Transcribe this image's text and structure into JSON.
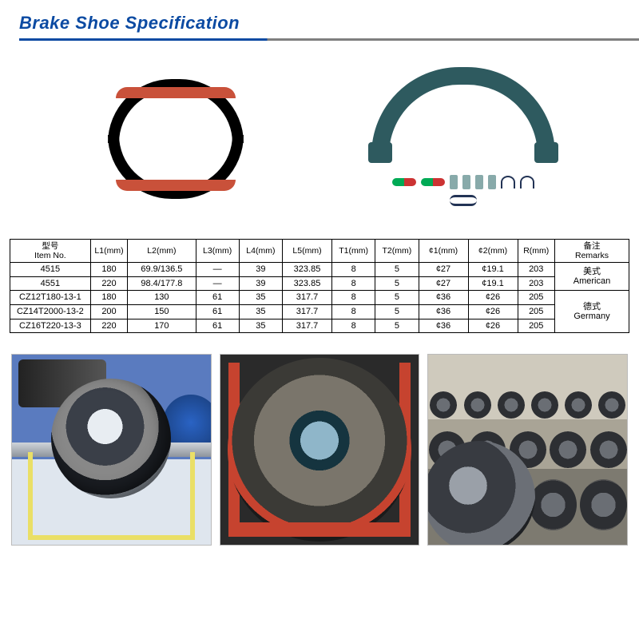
{
  "title": "Brake Shoe Specification",
  "colors": {
    "title": "#0b4aa2",
    "underline_primary": "#0b4aa2",
    "underline_secondary": "#7f7f7f",
    "shoe_lining": "#c9513a",
    "shoe_body": "#000000",
    "kit_body": "#2e5a5f",
    "table_border": "#000000"
  },
  "table": {
    "headers": [
      {
        "cn": "型号",
        "en": "Item No."
      },
      {
        "cn": "",
        "en": "L1(mm)"
      },
      {
        "cn": "",
        "en": "L2(mm)"
      },
      {
        "cn": "",
        "en": "L3(mm)"
      },
      {
        "cn": "",
        "en": "L4(mm)"
      },
      {
        "cn": "",
        "en": "L5(mm)"
      },
      {
        "cn": "",
        "en": "T1(mm)"
      },
      {
        "cn": "",
        "en": "T2(mm)"
      },
      {
        "cn": "",
        "en": "¢1(mm)"
      },
      {
        "cn": "",
        "en": "¢2(mm)"
      },
      {
        "cn": "",
        "en": "R(mm)"
      },
      {
        "cn": "备注",
        "en": "Remarks"
      }
    ],
    "col_widths_pct": [
      13,
      6,
      11,
      7,
      7,
      8,
      7,
      7,
      8,
      8,
      6,
      12
    ],
    "rows": [
      {
        "cells": [
          "4515",
          "180",
          "69.9/136.5",
          "—",
          "39",
          "323.85",
          "8",
          "5",
          "¢27",
          "¢19.1",
          "203"
        ],
        "remark_group": 0
      },
      {
        "cells": [
          "4551",
          "220",
          "98.4/177.8",
          "—",
          "39",
          "323.85",
          "8",
          "5",
          "¢27",
          "¢19.1",
          "203"
        ],
        "remark_group": 0
      },
      {
        "cells": [
          "CZ12T180-13-1",
          "180",
          "130",
          "61",
          "35",
          "317.7",
          "8",
          "5",
          "¢36",
          "¢26",
          "205"
        ],
        "remark_group": 1
      },
      {
        "cells": [
          "CZ14T2000-13-2",
          "200",
          "150",
          "61",
          "35",
          "317.7",
          "8",
          "5",
          "¢36",
          "¢26",
          "205"
        ],
        "remark_group": 1
      },
      {
        "cells": [
          "CZ16T220-13-3",
          "220",
          "170",
          "61",
          "35",
          "317.7",
          "8",
          "5",
          "¢36",
          "¢26",
          "205"
        ],
        "remark_group": 1
      }
    ],
    "remark_groups": [
      {
        "cn": "美式",
        "en": "American",
        "rowspan": 2
      },
      {
        "cn": "德式",
        "en": "Germany",
        "rowspan": 3
      }
    ]
  },
  "photos": {
    "alt1": "Axle hub assembly on yellow stand",
    "alt2": "Brake drum close-up on red frame",
    "alt3": "Factory floor rows of axle assemblies"
  }
}
